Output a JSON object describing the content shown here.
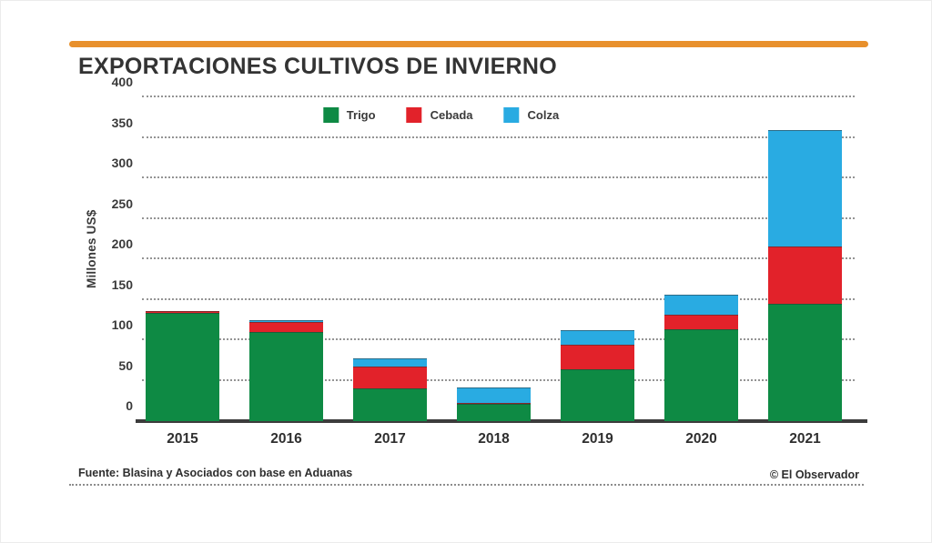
{
  "title": "EXPORTACIONES CULTIVOS DE INVIERNO",
  "accent_color": "#E8902C",
  "chart_data": {
    "type": "bar",
    "stacked": true,
    "categories": [
      "2015",
      "2016",
      "2017",
      "2018",
      "2019",
      "2020",
      "2021"
    ],
    "series": [
      {
        "name": "Trigo",
        "color": "#0E8A44",
        "values": [
          134,
          110,
          41,
          21,
          64,
          113,
          145
        ]
      },
      {
        "name": "Cebada",
        "color": "#E2222A",
        "values": [
          2,
          13,
          27,
          2,
          30,
          19,
          71
        ]
      },
      {
        "name": "Colza",
        "color": "#29ABE2",
        "values": [
          0,
          2,
          10,
          19,
          18,
          24,
          144
        ]
      }
    ],
    "title": "EXPORTACIONES CULTIVOS DE INVIERNO",
    "xlabel": "",
    "ylabel": "Millones US$",
    "ylim": [
      0,
      400
    ],
    "ytick_step": 50,
    "grid": "horizontal-dotted",
    "legend_position": "top-center"
  },
  "footer": {
    "source": "Fuente: Blasina y Asociados con base en Aduanas",
    "credit": "© El Observador"
  }
}
